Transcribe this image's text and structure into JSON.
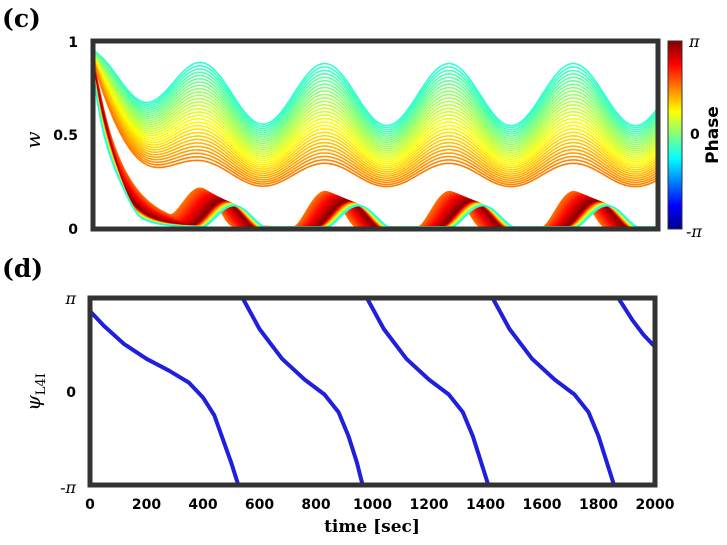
{
  "panels": {
    "c": {
      "label": "(c)",
      "ylabel": "w",
      "ylim": [
        0,
        1
      ],
      "yticks": [
        "0",
        "0.5",
        "1"
      ],
      "colorbar": {
        "label": "Phase",
        "ticks": [
          "π",
          "0",
          "-π"
        ],
        "colors": [
          "#7f0000",
          "#ff0000",
          "#ff8000",
          "#ffff00",
          "#80ff80",
          "#00ffff",
          "#0080ff",
          "#0000ff",
          "#00008f"
        ]
      }
    },
    "d": {
      "label": "(d)",
      "ylabel": "ψ",
      "ylabel_sub": "L4I",
      "xlabel": "time [sec]",
      "yticks": [
        "π",
        "0",
        "-π"
      ],
      "xticks": [
        "0",
        "200",
        "400",
        "600",
        "800",
        "1000",
        "1200",
        "1400",
        "1600",
        "1800",
        "2000"
      ]
    }
  },
  "chart_data": [
    {
      "type": "line",
      "panel": "c",
      "xlabel": "",
      "ylabel": "w",
      "xlim": [
        0,
        2000
      ],
      "ylim": [
        0,
        1
      ],
      "period_sec": 440,
      "first_peak_sec": 380,
      "series_count": 60,
      "color_encoding": "phase",
      "description_values": {
        "upper_envelope_max": 0.88,
        "upper_envelope_min": 0.55,
        "lower_envelope_max": 0.2,
        "lower_envelope_min": 0.01
      }
    },
    {
      "type": "line",
      "panel": "d",
      "xlabel": "time [sec]",
      "ylabel": "ψL4I",
      "xlim": [
        0,
        2000
      ],
      "ylim": [
        -3.1416,
        3.1416
      ],
      "series": [
        {
          "name": "",
          "color": "#1f1fdc",
          "x": [
            0,
            50,
            120,
            200,
            280,
            350,
            400,
            440,
            470,
            500,
            525
          ],
          "y": [
            2.7,
            2.2,
            1.6,
            1.1,
            0.7,
            0.3,
            -0.2,
            -0.8,
            -1.6,
            -2.4,
            -3.14
          ]
        },
        {
          "name": "",
          "color": "#1f1fdc",
          "x": [
            540,
            600,
            680,
            760,
            830,
            880,
            915,
            945,
            965
          ],
          "y": [
            3.14,
            2.1,
            1.1,
            0.4,
            -0.1,
            -0.7,
            -1.5,
            -2.4,
            -3.14
          ]
        },
        {
          "name": "",
          "color": "#1f1fdc",
          "x": [
            980,
            1040,
            1120,
            1200,
            1270,
            1320,
            1355,
            1385,
            1410
          ],
          "y": [
            3.14,
            2.1,
            1.1,
            0.4,
            -0.1,
            -0.7,
            -1.5,
            -2.4,
            -3.14
          ]
        },
        {
          "name": "",
          "color": "#1f1fdc",
          "x": [
            1425,
            1485,
            1565,
            1645,
            1715,
            1765,
            1800,
            1830,
            1855
          ],
          "y": [
            3.14,
            2.1,
            1.1,
            0.4,
            -0.1,
            -0.7,
            -1.5,
            -2.4,
            -3.14
          ]
        },
        {
          "name": "",
          "color": "#1f1fdc",
          "x": [
            1870,
            1920,
            1960,
            2000
          ],
          "y": [
            3.14,
            2.4,
            1.9,
            1.5
          ]
        }
      ]
    }
  ]
}
